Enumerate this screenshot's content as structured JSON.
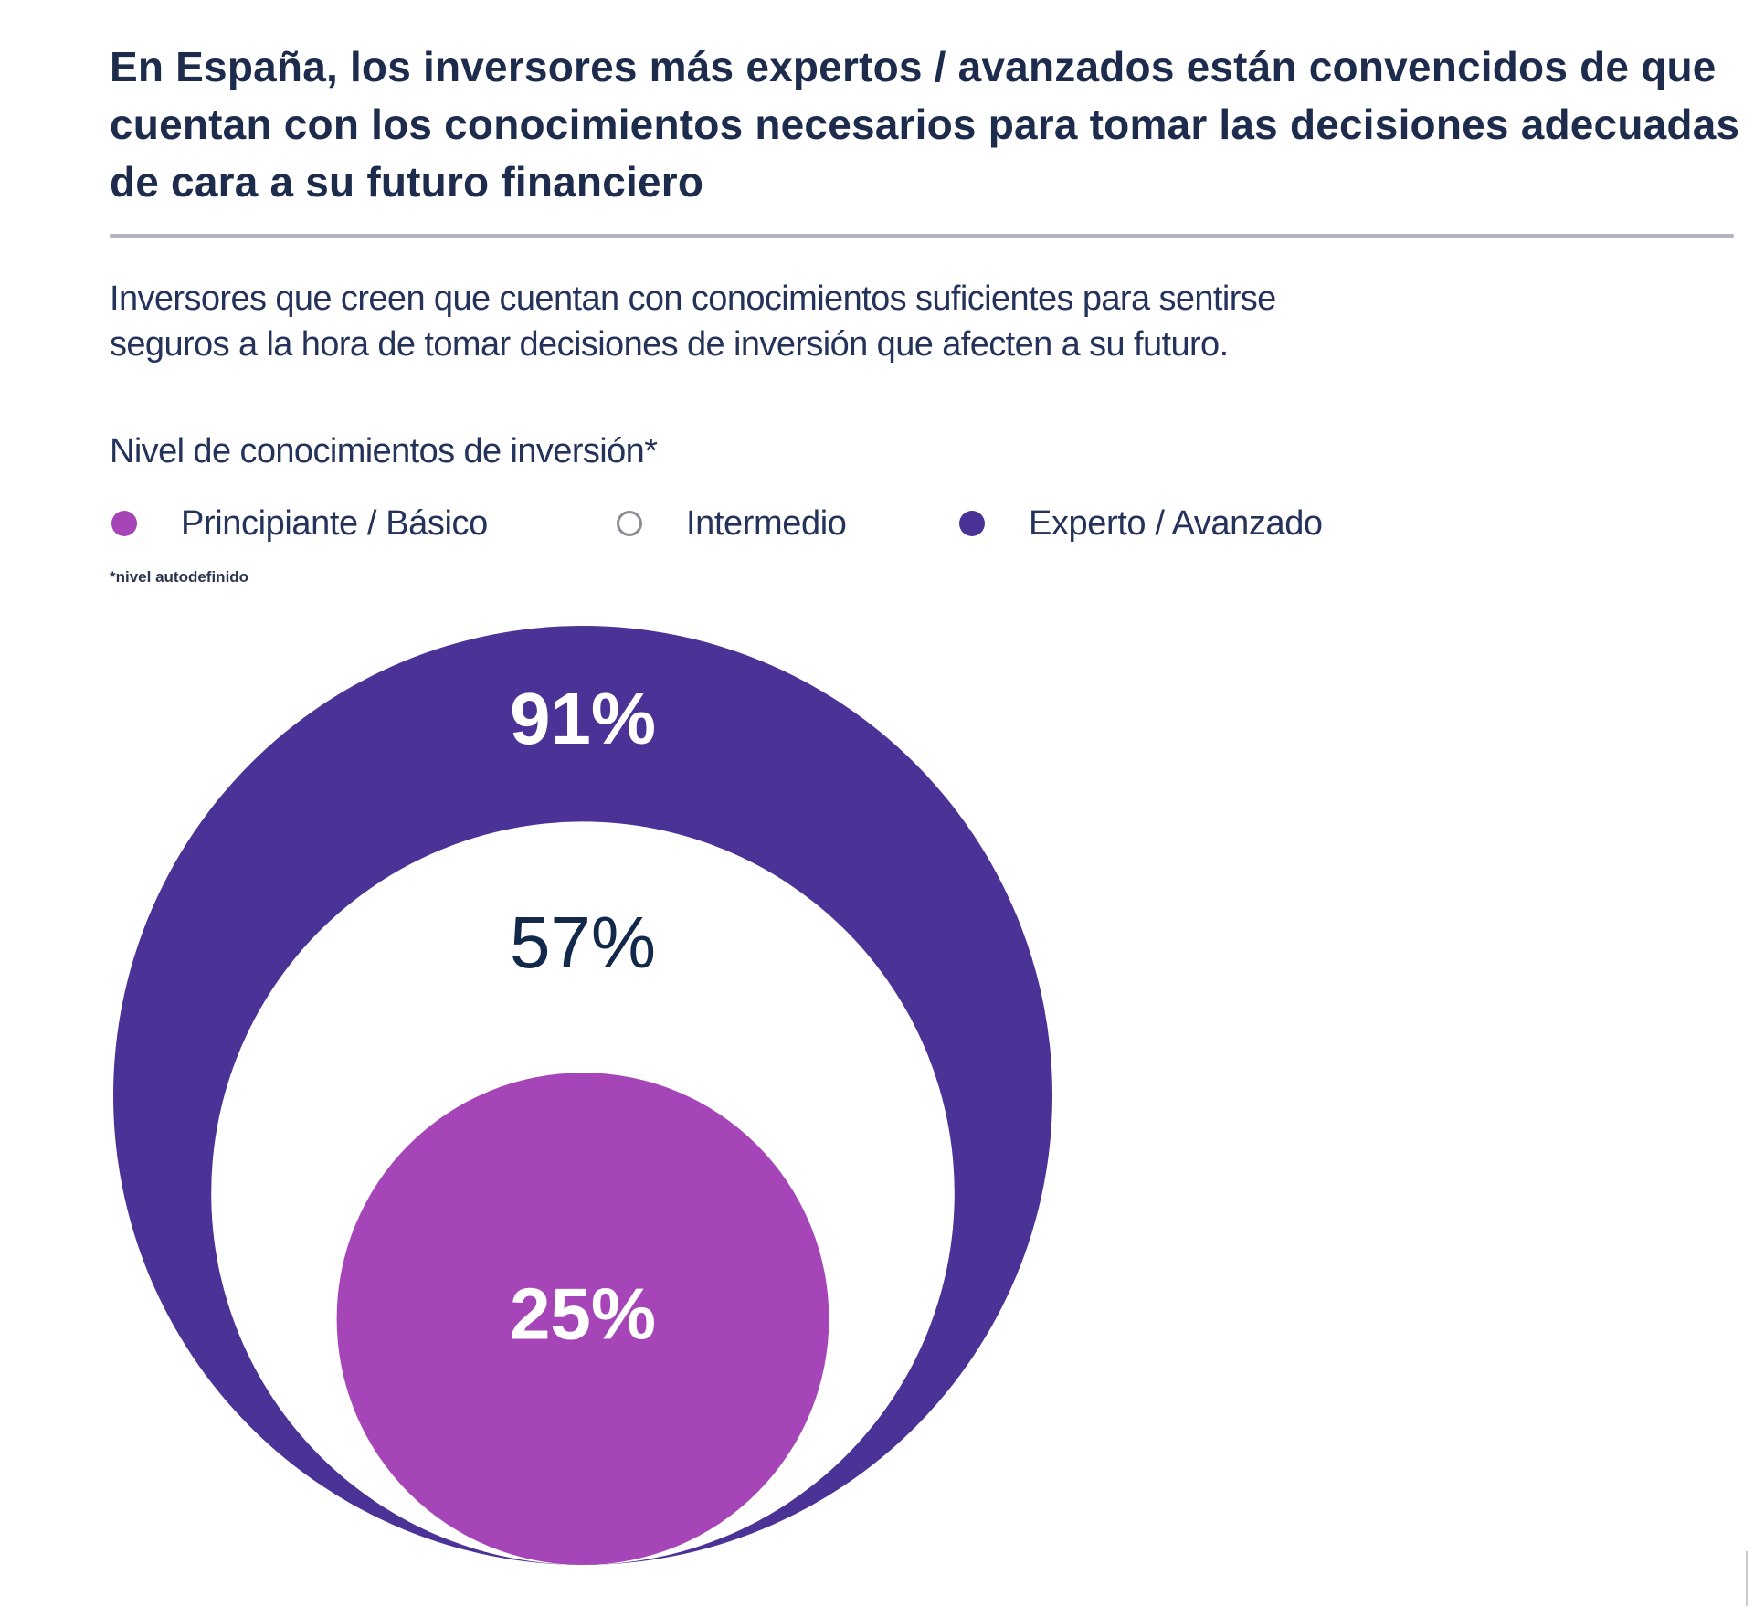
{
  "header": {
    "title": "En España, los inversores más expertos / avanzados están convencidos de que cuentan con los conocimientos necesarios para tomar las decisiones adecuadas de cara a su futuro financiero",
    "subtitle_line1": "Inversores que creen que cuentan con conocimientos suficientes para sentirse",
    "subtitle_line2": "seguros a la hora de tomar decisiones de inversión que afecten a su futuro."
  },
  "legend": {
    "title": "Nivel de conocimientos de inversión*",
    "footnote": "*nivel autodefinido",
    "items": [
      {
        "label": "Principiante / Básico",
        "color": "#a545b8",
        "outline": false
      },
      {
        "label": "Intermedio",
        "color": "#ffffff",
        "outline": true
      },
      {
        "label": "Experto / Avanzado",
        "color": "#4b3296",
        "outline": false
      }
    ]
  },
  "colors": {
    "experto": "#4b3296",
    "intermedio": "#ffffff",
    "principiante": "#a545b8",
    "label_light": "#ffffff",
    "label_dark": "#13294b",
    "outline": "#8a8d93"
  },
  "chart_data": {
    "type": "nested-circles",
    "title": "Inversores que creen que cuentan con conocimientos suficientes para sentirse seguros a la hora de tomar decisiones de inversión que afecten a su futuro.",
    "legend_title": "Nivel de conocimientos de inversión*",
    "legend_position": "top-left",
    "unit": "%",
    "series": [
      {
        "name": "Experto / Avanzado",
        "value": 91,
        "label": "91%"
      },
      {
        "name": "Intermedio",
        "value": 57,
        "label": "57%"
      },
      {
        "name": "Principiante / Básico",
        "value": 25,
        "label": "25%"
      }
    ]
  }
}
